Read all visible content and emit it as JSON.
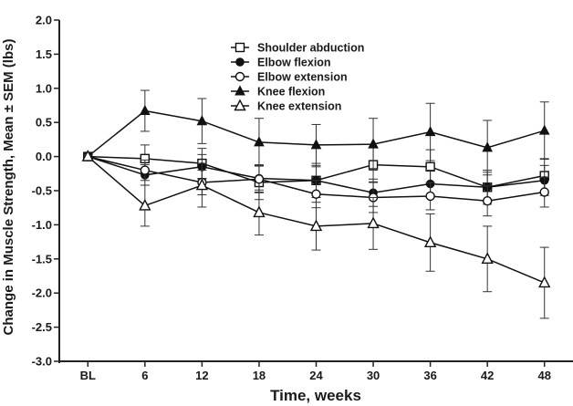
{
  "chart_data": {
    "type": "line",
    "title": "",
    "xlabel": "Time, weeks",
    "ylabel": "Change in Muscle Strength, Mean ± SEM (lbs)",
    "categories": [
      "BL",
      "6",
      "12",
      "18",
      "24",
      "30",
      "36",
      "42",
      "48"
    ],
    "x": [
      0,
      6,
      12,
      18,
      24,
      30,
      36,
      42,
      48
    ],
    "ylim": [
      -3.0,
      2.0
    ],
    "yticks": [
      "2.0",
      "1.5",
      "1.0",
      "0.5",
      "0.0",
      "-0.5",
      "-1.0",
      "-1.5",
      "-2.0",
      "-2.5",
      "-3.0"
    ],
    "grid": false,
    "legend_position": "top-center",
    "series": [
      {
        "name": "Shoulder abduction",
        "marker": "open-square",
        "values": [
          0.0,
          -0.03,
          -0.1,
          -0.38,
          -0.35,
          -0.12,
          -0.15,
          -0.45,
          -0.28
        ],
        "error": [
          0.0,
          0.2,
          0.22,
          0.25,
          0.25,
          0.25,
          0.25,
          0.25,
          0.25
        ]
      },
      {
        "name": "Elbow flexion",
        "marker": "filled-circle",
        "values": [
          0.0,
          -0.27,
          -0.15,
          -0.32,
          -0.35,
          -0.53,
          -0.4,
          -0.45,
          -0.35
        ],
        "error": [
          0.0,
          0.15,
          0.18,
          0.2,
          0.2,
          0.2,
          0.2,
          0.22,
          0.22
        ]
      },
      {
        "name": "Elbow extension",
        "marker": "open-circle",
        "values": [
          0.0,
          -0.2,
          -0.38,
          -0.33,
          -0.55,
          -0.6,
          -0.58,
          -0.65,
          -0.52
        ],
        "error": [
          0.0,
          0.15,
          0.18,
          0.2,
          0.2,
          0.22,
          0.2,
          0.22,
          0.22
        ]
      },
      {
        "name": "Knee flexion",
        "marker": "filled-triangle",
        "values": [
          0.0,
          0.67,
          0.52,
          0.21,
          0.17,
          0.18,
          0.36,
          0.13,
          0.38
        ],
        "error": [
          0.0,
          0.3,
          0.33,
          0.35,
          0.3,
          0.38,
          0.42,
          0.4,
          0.42
        ]
      },
      {
        "name": "Knee extension",
        "marker": "open-triangle",
        "values": [
          0.0,
          -0.72,
          -0.42,
          -0.82,
          -1.02,
          -0.98,
          -1.26,
          -1.5,
          -1.85
        ],
        "error": [
          0.0,
          0.3,
          0.32,
          0.33,
          0.35,
          0.38,
          0.42,
          0.48,
          0.52
        ]
      }
    ]
  }
}
